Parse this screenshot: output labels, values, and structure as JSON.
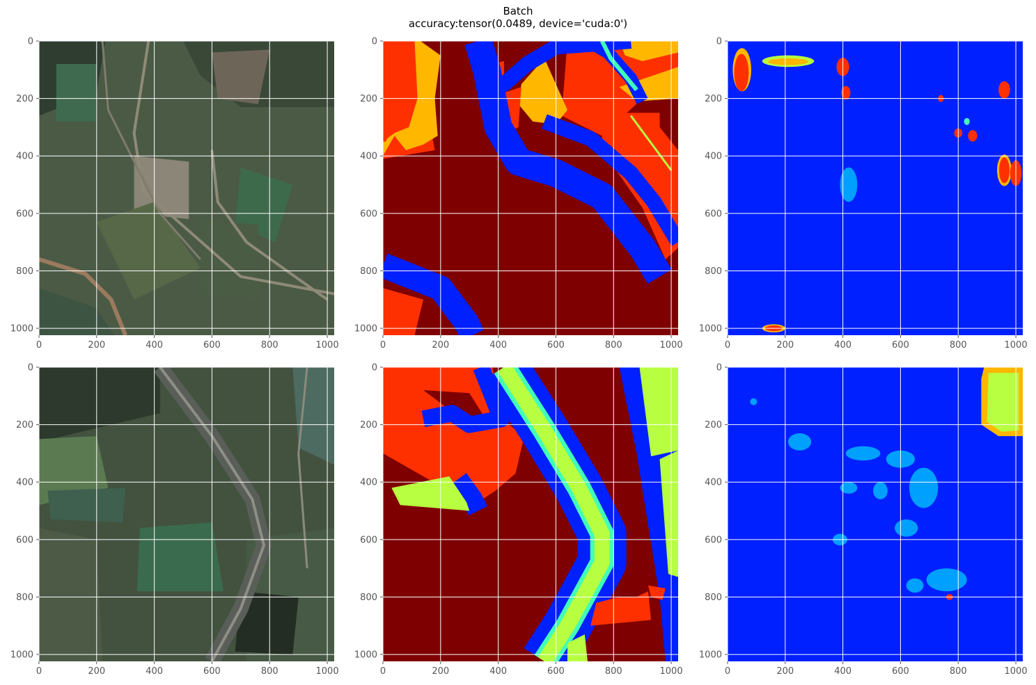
{
  "figure": {
    "title_line1": "Batch",
    "title_line2": "accuracy:tensor(0.0489, device='cuda:0')"
  },
  "colors": {
    "grid": "#ffffff",
    "tick_text": "#555555",
    "jet_dark_red": "#7f0000",
    "jet_red": "#ff3000",
    "jet_orange": "#ffb700",
    "jet_yellow_green": "#b7ff40",
    "jet_cyan": "#40ffb7",
    "jet_light_blue": "#00a0ff",
    "jet_blue": "#0020ff",
    "jet_dark_blue": "#000080"
  },
  "chart_data": [
    {
      "type": "heatmap",
      "content": "aerial-image",
      "row": 0,
      "col": 0,
      "xlim": [
        0,
        1024
      ],
      "ylim": [
        1024,
        0
      ],
      "xticks": [
        0,
        200,
        400,
        600,
        800,
        1000
      ],
      "yticks": [
        0,
        200,
        400,
        600,
        800,
        1000
      ],
      "grid": true
    },
    {
      "type": "heatmap",
      "content": "label-mask",
      "row": 0,
      "col": 1,
      "xlim": [
        0,
        1024
      ],
      "ylim": [
        1024,
        0
      ],
      "xticks": [
        0,
        200,
        400,
        600,
        800,
        1000
      ],
      "yticks": [
        0,
        200,
        400,
        600,
        800,
        1000
      ],
      "grid": true
    },
    {
      "type": "heatmap",
      "content": "prediction-mask",
      "row": 0,
      "col": 2,
      "xlim": [
        0,
        1024
      ],
      "ylim": [
        1024,
        0
      ],
      "xticks": [
        0,
        200,
        400,
        600,
        800,
        1000
      ],
      "yticks": [
        0,
        200,
        400,
        600,
        800,
        1000
      ],
      "grid": true
    },
    {
      "type": "heatmap",
      "content": "aerial-image",
      "row": 1,
      "col": 0,
      "xlim": [
        0,
        1024
      ],
      "ylim": [
        1024,
        0
      ],
      "xticks": [
        0,
        200,
        400,
        600,
        800,
        1000
      ],
      "yticks": [
        0,
        200,
        400,
        600,
        800,
        1000
      ],
      "grid": true
    },
    {
      "type": "heatmap",
      "content": "label-mask",
      "row": 1,
      "col": 1,
      "xlim": [
        0,
        1024
      ],
      "ylim": [
        1024,
        0
      ],
      "xticks": [
        0,
        200,
        400,
        600,
        800,
        1000
      ],
      "yticks": [
        0,
        200,
        400,
        600,
        800,
        1000
      ],
      "grid": true
    },
    {
      "type": "heatmap",
      "content": "prediction-mask",
      "row": 1,
      "col": 2,
      "xlim": [
        0,
        1024
      ],
      "ylim": [
        1024,
        0
      ],
      "xticks": [
        0,
        200,
        400,
        600,
        800,
        1000
      ],
      "yticks": [
        0,
        200,
        400,
        600,
        800,
        1000
      ],
      "grid": true
    }
  ]
}
